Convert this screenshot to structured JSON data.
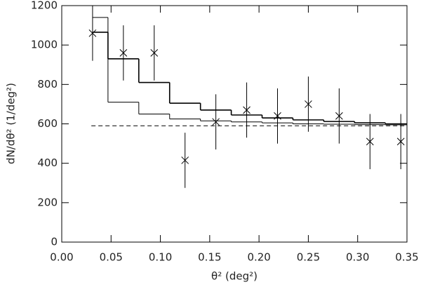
{
  "chart_data": {
    "type": "scatter",
    "x_label": "θ² (deg²)",
    "y_label": "dN/dθ² (1/deg²)",
    "x": [
      0.03125,
      0.0625,
      0.09375,
      0.125,
      0.15625,
      0.1875,
      0.21875,
      0.25,
      0.28125,
      0.3125,
      0.34375
    ],
    "values": [
      1060,
      960,
      960,
      415,
      610,
      670,
      640,
      700,
      640,
      510,
      510
    ],
    "errors": [
      140,
      140,
      140,
      140,
      140,
      140,
      140,
      140,
      140,
      140,
      140
    ],
    "color": "#000000",
    "bin_edges": [
      0.03125,
      0.046875,
      0.078125,
      0.109375,
      0.140625,
      0.171875,
      0.203125,
      0.234375,
      0.265625,
      0.296875,
      0.328125,
      0.35
    ],
    "steps": [
      {
        "values": [
          1140,
          710,
          650,
          625,
          615,
          610,
          605,
          600,
          598,
          596,
          595
        ]
      },
      {
        "values": [
          1065,
          930,
          810,
          705,
          670,
          645,
          630,
          620,
          612,
          605,
          600
        ]
      }
    ],
    "reference_line": {
      "y": 590,
      "x": [
        0.03,
        0.35
      ]
    },
    "xlim": [
      0,
      0.35
    ],
    "xticks": [
      {
        "value": 0,
        "label": "0.00"
      },
      0.05,
      {
        "value": 0.1,
        "label": "0.10"
      },
      0.15,
      {
        "value": 0.2,
        "label": "0.20"
      },
      0.25,
      {
        "value": 0.3,
        "label": "0.30"
      },
      0.35
    ],
    "ylim": [
      0,
      1200
    ],
    "yticks": [
      0,
      200,
      400,
      600,
      800,
      1000,
      1200
    ]
  }
}
